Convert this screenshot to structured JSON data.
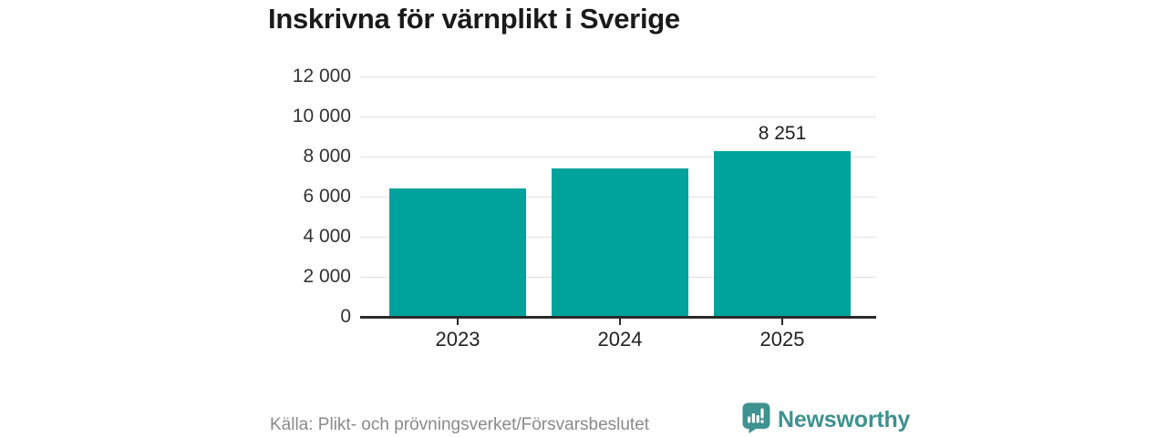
{
  "header": {
    "title": "Inskrivna för värnplikt i Sverige"
  },
  "chart_data": {
    "type": "bar",
    "title": "Inskrivna för värnplikt i Sverige",
    "categories": [
      "2023",
      "2024",
      "2025"
    ],
    "values": [
      6400,
      7400,
      8251
    ],
    "value_labels": [
      "",
      "",
      "8 251"
    ],
    "ylim": [
      0,
      12000
    ],
    "yticks": [
      0,
      2000,
      4000,
      6000,
      8000,
      10000,
      12000
    ],
    "ytick_labels": [
      "0",
      "2 000",
      "4 000",
      "6 000",
      "8 000",
      "10 000",
      "12 000"
    ],
    "grid": true,
    "legend": "none",
    "bar_color": "#00A39B"
  },
  "footer": {
    "source": "Källa: Plikt- och prövningsverket/Försvarsbeslutet",
    "brand": {
      "name": "Newsworthy",
      "icon": "newsworthy-chart-bubble-icon",
      "color": "#3E928F"
    }
  },
  "colors": {
    "background": "#FFFFFF",
    "bar": "#00A39B",
    "grid": "#E2E2E2",
    "axis": "#2B2B2B",
    "title": "#1A1A1A",
    "tick_label": "#333333",
    "source_text": "#8A8A8A",
    "brand_teal": "#3E928F"
  }
}
